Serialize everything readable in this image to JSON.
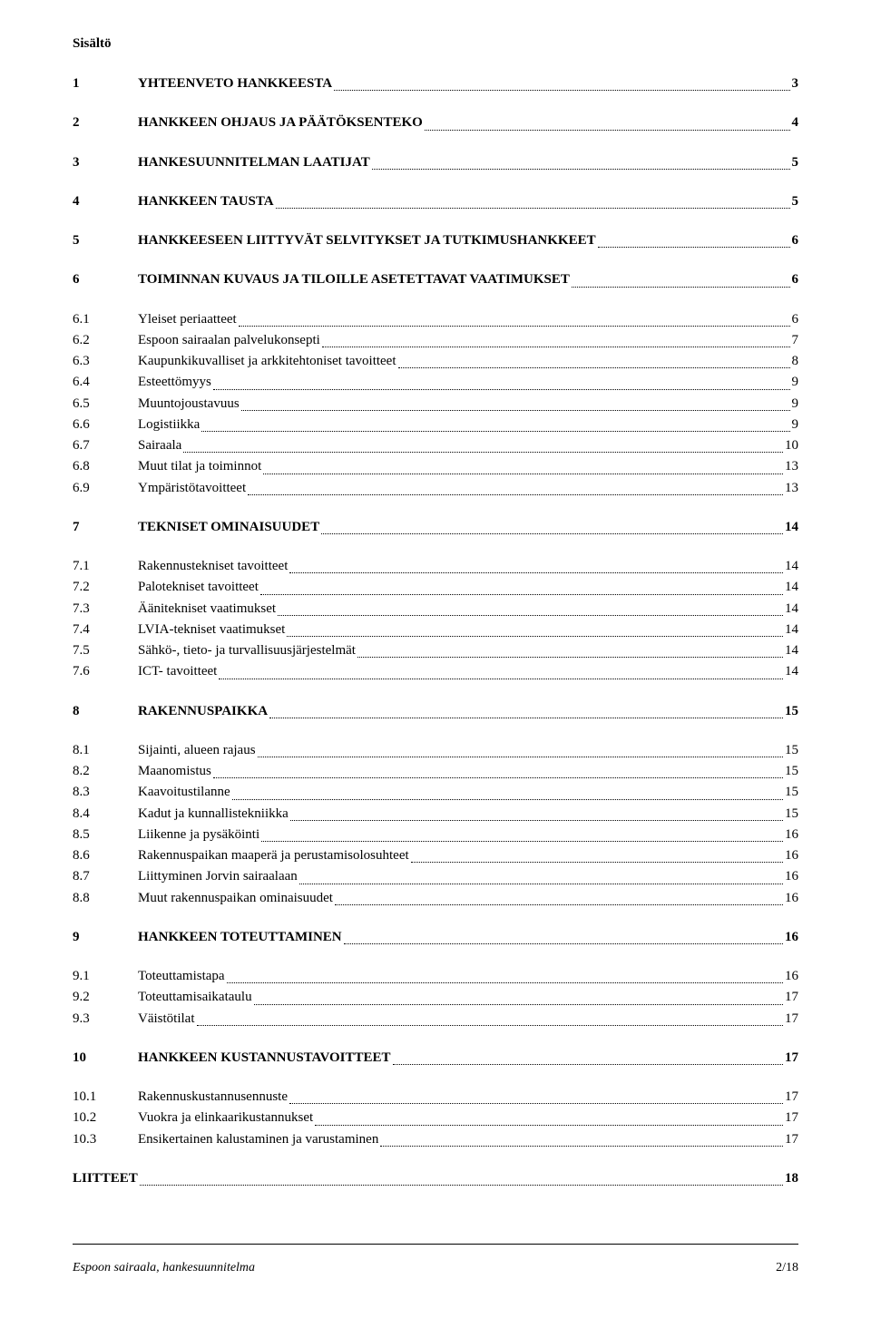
{
  "title": "Sisältö",
  "entries": [
    {
      "num": "1",
      "label": "YHTEENVETO HANKKEESTA",
      "page": "3",
      "bold": true,
      "gap": true
    },
    {
      "num": "2",
      "label": "HANKKEEN OHJAUS JA PÄÄTÖKSENTEKO",
      "page": "4",
      "bold": true,
      "gap": true
    },
    {
      "num": "3",
      "label": "HANKESUUNNITELMAN LAATIJAT",
      "page": "5",
      "bold": true,
      "gap": true
    },
    {
      "num": "4",
      "label": "HANKKEEN TAUSTA",
      "page": "5",
      "bold": true,
      "gap": true
    },
    {
      "num": "5",
      "label": "HANKKEESEEN LIITTYVÄT SELVITYKSET JA TUTKIMUSHANKKEET",
      "page": "6",
      "bold": true,
      "gap": true
    },
    {
      "num": "6",
      "label": "TOIMINNAN KUVAUS JA TILOILLE ASETETTAVAT VAATIMUKSET",
      "page": "6",
      "bold": true,
      "gap": true
    },
    {
      "num": "6.1",
      "label": "Yleiset periaatteet",
      "page": "6",
      "bold": false,
      "gap": true
    },
    {
      "num": "6.2",
      "label": "Espoon sairaalan palvelukonsepti",
      "page": "7",
      "bold": false,
      "gap": false
    },
    {
      "num": "6.3",
      "label": "Kaupunkikuvalliset ja arkkitehtoniset tavoitteet",
      "page": "8",
      "bold": false,
      "gap": false
    },
    {
      "num": "6.4",
      "label": "Esteettömyys",
      "page": "9",
      "bold": false,
      "gap": false
    },
    {
      "num": "6.5",
      "label": "Muuntojoustavuus",
      "page": "9",
      "bold": false,
      "gap": false
    },
    {
      "num": "6.6",
      "label": "Logistiikka",
      "page": "9",
      "bold": false,
      "gap": false
    },
    {
      "num": "6.7",
      "label": "Sairaala",
      "page": "10",
      "bold": false,
      "gap": false
    },
    {
      "num": "6.8",
      "label": "Muut tilat ja toiminnot",
      "page": "13",
      "bold": false,
      "gap": false
    },
    {
      "num": "6.9",
      "label": "Ympäristötavoitteet",
      "page": "13",
      "bold": false,
      "gap": false
    },
    {
      "num": "7",
      "label": "TEKNISET OMINAISUUDET",
      "page": "14",
      "bold": true,
      "gap": true
    },
    {
      "num": "7.1",
      "label": "Rakennustekniset tavoitteet",
      "page": "14",
      "bold": false,
      "gap": true
    },
    {
      "num": "7.2",
      "label": "Palotekniset tavoitteet",
      "page": "14",
      "bold": false,
      "gap": false
    },
    {
      "num": "7.3",
      "label": "Äänitekniset vaatimukset",
      "page": "14",
      "bold": false,
      "gap": false
    },
    {
      "num": "7.4",
      "label": "LVIA-tekniset vaatimukset",
      "page": "14",
      "bold": false,
      "gap": false
    },
    {
      "num": "7.5",
      "label": "Sähkö-, tieto- ja turvallisuusjärjestelmät",
      "page": "14",
      "bold": false,
      "gap": false
    },
    {
      "num": "7.6",
      "label": "ICT- tavoitteet",
      "page": "14",
      "bold": false,
      "gap": false
    },
    {
      "num": "8",
      "label": "RAKENNUSPAIKKA",
      "page": "15",
      "bold": true,
      "gap": true
    },
    {
      "num": "8.1",
      "label": "Sijainti, alueen rajaus",
      "page": "15",
      "bold": false,
      "gap": true
    },
    {
      "num": "8.2",
      "label": "Maanomistus",
      "page": "15",
      "bold": false,
      "gap": false
    },
    {
      "num": "8.3",
      "label": "Kaavoitustilanne",
      "page": "15",
      "bold": false,
      "gap": false
    },
    {
      "num": "8.4",
      "label": "Kadut ja kunnallistekniikka",
      "page": "15",
      "bold": false,
      "gap": false
    },
    {
      "num": "8.5",
      "label": "Liikenne ja pysäköinti",
      "page": "16",
      "bold": false,
      "gap": false
    },
    {
      "num": "8.6",
      "label": "Rakennuspaikan maaperä ja perustamisolosuhteet",
      "page": "16",
      "bold": false,
      "gap": false
    },
    {
      "num": "8.7",
      "label": "Liittyminen Jorvin sairaalaan",
      "page": "16",
      "bold": false,
      "gap": false
    },
    {
      "num": "8.8",
      "label": "Muut rakennuspaikan ominaisuudet",
      "page": "16",
      "bold": false,
      "gap": false
    },
    {
      "num": "9",
      "label": "HANKKEEN TOTEUTTAMINEN",
      "page": "16",
      "bold": true,
      "gap": true
    },
    {
      "num": "9.1",
      "label": "Toteuttamistapa",
      "page": "16",
      "bold": false,
      "gap": true
    },
    {
      "num": "9.2",
      "label": "Toteuttamisaikataulu",
      "page": "17",
      "bold": false,
      "gap": false
    },
    {
      "num": "9.3",
      "label": "Väistötilat",
      "page": "17",
      "bold": false,
      "gap": false
    },
    {
      "num": "10",
      "label": "HANKKEEN KUSTANNUSTAVOITTEET",
      "page": "17",
      "bold": true,
      "gap": true
    },
    {
      "num": "10.1",
      "label": "Rakennuskustannusennuste",
      "page": "17",
      "bold": false,
      "gap": true
    },
    {
      "num": "10.2",
      "label": "Vuokra ja elinkaarikustannukset",
      "page": "17",
      "bold": false,
      "gap": false
    },
    {
      "num": "10.3",
      "label": "Ensikertainen kalustaminen ja varustaminen",
      "page": "17",
      "bold": false,
      "gap": false
    },
    {
      "num": "LIITTEET",
      "label": "",
      "page": "18",
      "bold": true,
      "gap": true,
      "merge": true
    }
  ],
  "footer": {
    "left": "Espoon sairaala, hankesuunnitelma",
    "right": "2/18"
  }
}
